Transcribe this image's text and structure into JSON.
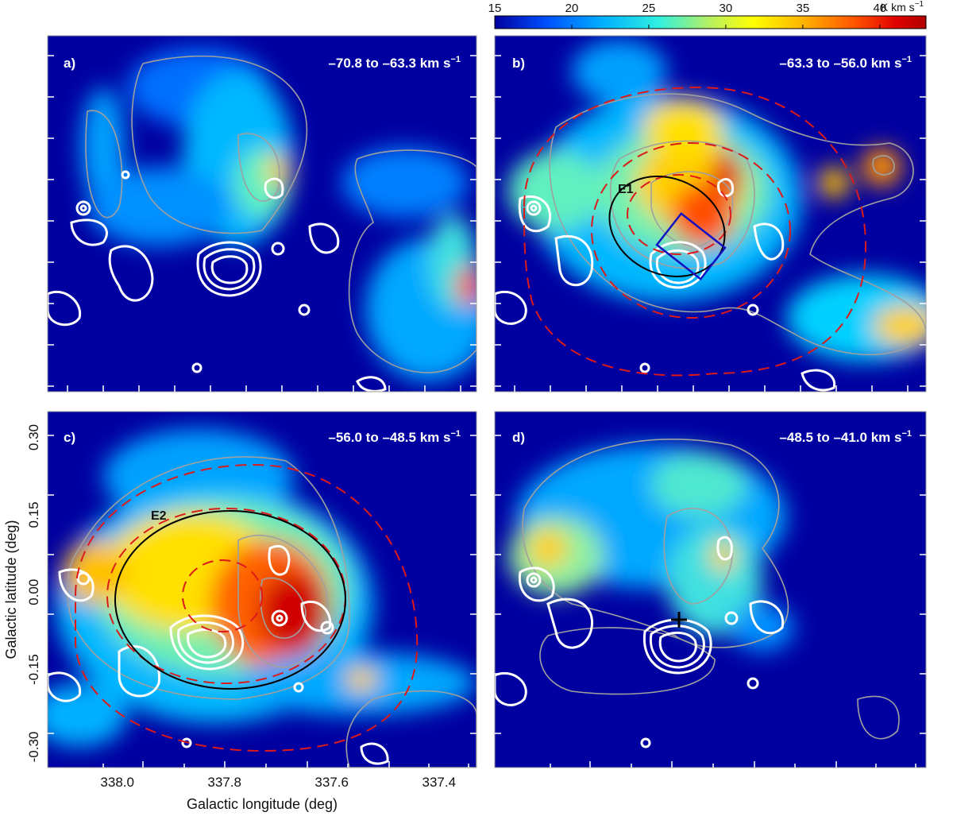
{
  "chart_data": {
    "type": "heatmap",
    "colorbar": {
      "ticks": [
        "15",
        "20",
        "25",
        "30",
        "35",
        "40"
      ],
      "range": [
        15,
        43
      ],
      "unit_main": "K km s",
      "unit_sup": "−1",
      "colormap": [
        "#0000a0",
        "#0050ff",
        "#00b0ff",
        "#30f0e0",
        "#b8f060",
        "#ffff00",
        "#ffb000",
        "#ff5000",
        "#e00000",
        "#b00000"
      ]
    },
    "xlabel": "Galactic longitude (deg)",
    "ylabel": "Galactic latitude (deg)",
    "x_ticks": [
      "338.0",
      "337.8",
      "337.6",
      "337.4"
    ],
    "y_ticks": [
      "0.30",
      "0.15",
      "0.00",
      "-0.15",
      "-0.30"
    ],
    "xlim": [
      338.13,
      337.33
    ],
    "ylim": [
      -0.34,
      0.35
    ],
    "panels": [
      {
        "id": "a",
        "label": "a)",
        "velocity_main": "–70.8 to –63.3 km s",
        "velocity_sup": "−1"
      },
      {
        "id": "b",
        "label": "b)",
        "velocity_main": "–63.3 to –56.0 km s",
        "velocity_sup": "−1",
        "ellipse_label": "E1"
      },
      {
        "id": "c",
        "label": "c)",
        "velocity_main": "–56.0 to –48.5 km s",
        "velocity_sup": "−1",
        "ellipse_label": "E2"
      },
      {
        "id": "d",
        "label": "d)",
        "velocity_main": "–48.5 to –41.0 km s",
        "velocity_sup": "−1"
      }
    ]
  }
}
